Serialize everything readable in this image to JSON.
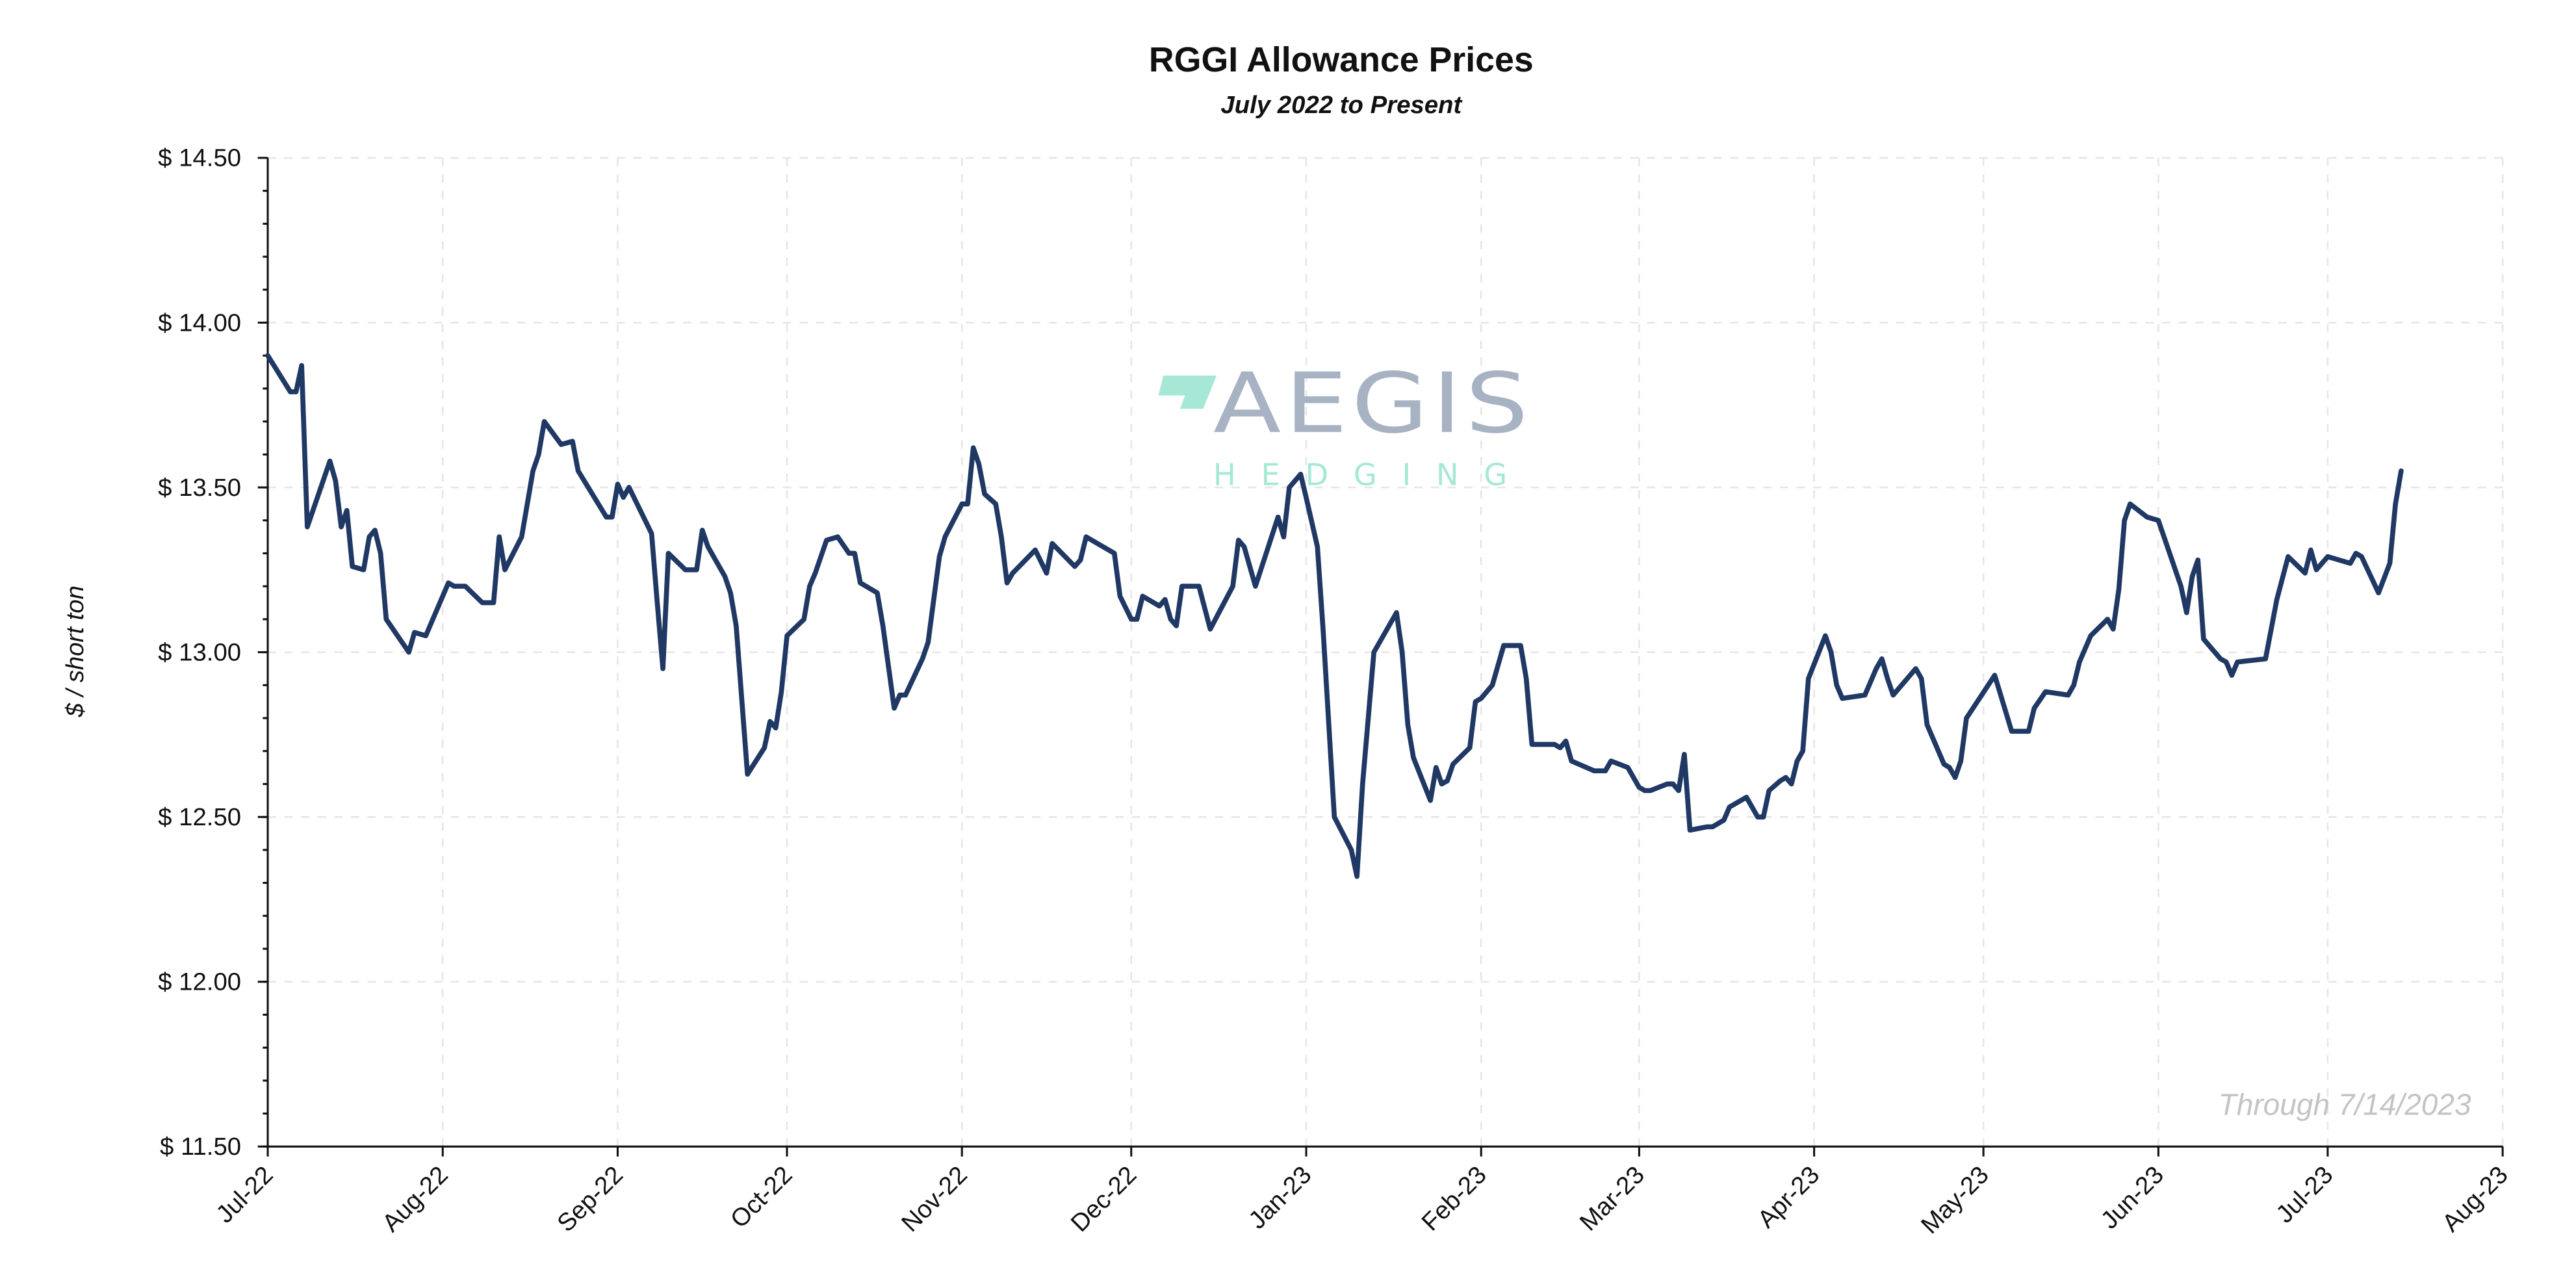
{
  "chart_data": {
    "type": "line",
    "title": "RGGI Allowance Prices",
    "subtitle": "July 2022 to Present",
    "xlabel": "",
    "ylabel": "$ / short ton",
    "annotation": "Through 7/14/2023",
    "xlim": [
      "2022-07-01",
      "2023-08-01"
    ],
    "ylim": [
      11.5,
      14.5
    ],
    "yticks": [
      11.5,
      12.0,
      12.5,
      13.0,
      13.5,
      14.0,
      14.5
    ],
    "ytick_labels": [
      "$ 11.50",
      "$ 12.00",
      "$ 12.50",
      "$ 13.00",
      "$ 13.50",
      "$ 14.00",
      "$ 14.50"
    ],
    "xticks": [
      "2022-07-01",
      "2022-08-01",
      "2022-09-01",
      "2022-10-01",
      "2022-11-01",
      "2022-12-01",
      "2023-01-01",
      "2023-02-01",
      "2023-03-01",
      "2023-04-01",
      "2023-05-01",
      "2023-06-01",
      "2023-07-01",
      "2023-08-01"
    ],
    "xtick_labels": [
      "Jul-22",
      "Aug-22",
      "Sep-22",
      "Oct-22",
      "Nov-22",
      "Dec-22",
      "Jan-23",
      "Feb-23",
      "Mar-23",
      "Apr-23",
      "May-23",
      "Jun-23",
      "Jul-23",
      "Aug-23"
    ],
    "grid": true,
    "line_color": "#203864",
    "series": [
      {
        "x": [
          "2022-07-01",
          "2022-07-05",
          "2022-07-06",
          "2022-07-07",
          "2022-07-08",
          "2022-07-12",
          "2022-07-13",
          "2022-07-14",
          "2022-07-15",
          "2022-07-16",
          "2022-07-18",
          "2022-07-19",
          "2022-07-20",
          "2022-07-21",
          "2022-07-22",
          "2022-07-26",
          "2022-07-27",
          "2022-07-29",
          "2022-08-02",
          "2022-08-03",
          "2022-08-05",
          "2022-08-08",
          "2022-08-10",
          "2022-08-11",
          "2022-08-12",
          "2022-08-15",
          "2022-08-17",
          "2022-08-18",
          "2022-08-19",
          "2022-08-22",
          "2022-08-24",
          "2022-08-25",
          "2022-08-30",
          "2022-08-31",
          "2022-09-01",
          "2022-09-02",
          "2022-09-03",
          "2022-09-07",
          "2022-09-08",
          "2022-09-09",
          "2022-09-10",
          "2022-09-13",
          "2022-09-15",
          "2022-09-16",
          "2022-09-17",
          "2022-09-20",
          "2022-09-21",
          "2022-09-22",
          "2022-09-24",
          "2022-09-27",
          "2022-09-28",
          "2022-09-29",
          "2022-09-30",
          "2022-10-01",
          "2022-10-04",
          "2022-10-05",
          "2022-10-06",
          "2022-10-08",
          "2022-10-10",
          "2022-10-12",
          "2022-10-13",
          "2022-10-14",
          "2022-10-17",
          "2022-10-18",
          "2022-10-20",
          "2022-10-21",
          "2022-10-22",
          "2022-10-25",
          "2022-10-26",
          "2022-10-28",
          "2022-10-29",
          "2022-11-01",
          "2022-11-02",
          "2022-11-03",
          "2022-11-04",
          "2022-11-05",
          "2022-11-07",
          "2022-11-08",
          "2022-11-09",
          "2022-11-10",
          "2022-11-14",
          "2022-11-16",
          "2022-11-17",
          "2022-11-21",
          "2022-11-22",
          "2022-11-23",
          "2022-11-28",
          "2022-11-29",
          "2022-12-01",
          "2022-12-02",
          "2022-12-03",
          "2022-12-06",
          "2022-12-07",
          "2022-12-08",
          "2022-12-09",
          "2022-12-10",
          "2022-12-13",
          "2022-12-15",
          "2022-12-19",
          "2022-12-20",
          "2022-12-21",
          "2022-12-23",
          "2022-12-27",
          "2022-12-28",
          "2022-12-29",
          "2022-12-31",
          "2023-01-01",
          "2023-01-03",
          "2023-01-04",
          "2023-01-06",
          "2023-01-09",
          "2023-01-10",
          "2023-01-11",
          "2023-01-13",
          "2023-01-17",
          "2023-01-18",
          "2023-01-19",
          "2023-01-20",
          "2023-01-23",
          "2023-01-24",
          "2023-01-25",
          "2023-01-26",
          "2023-01-27",
          "2023-01-30",
          "2023-01-31",
          "2023-02-01",
          "2023-02-03",
          "2023-02-05",
          "2023-02-08",
          "2023-02-09",
          "2023-02-10",
          "2023-02-14",
          "2023-02-15",
          "2023-02-16",
          "2023-02-17",
          "2023-02-21",
          "2023-02-23",
          "2023-02-24",
          "2023-02-27",
          "2023-03-01",
          "2023-03-02",
          "2023-03-03",
          "2023-03-06",
          "2023-03-07",
          "2023-03-08",
          "2023-03-09",
          "2023-03-10",
          "2023-03-13",
          "2023-03-14",
          "2023-03-16",
          "2023-03-17",
          "2023-03-20",
          "2023-03-22",
          "2023-03-23",
          "2023-03-24",
          "2023-03-26",
          "2023-03-27",
          "2023-03-28",
          "2023-03-29",
          "2023-03-30",
          "2023-03-31",
          "2023-04-03",
          "2023-04-04",
          "2023-04-05",
          "2023-04-06",
          "2023-04-10",
          "2023-04-12",
          "2023-04-13",
          "2023-04-14",
          "2023-04-15",
          "2023-04-19",
          "2023-04-20",
          "2023-04-21",
          "2023-04-24",
          "2023-04-25",
          "2023-04-26",
          "2023-04-27",
          "2023-04-28",
          "2023-05-03",
          "2023-05-06",
          "2023-05-09",
          "2023-05-10",
          "2023-05-12",
          "2023-05-16",
          "2023-05-17",
          "2023-05-18",
          "2023-05-20",
          "2023-05-23",
          "2023-05-24",
          "2023-05-25",
          "2023-05-26",
          "2023-05-27",
          "2023-05-30",
          "2023-06-01",
          "2023-06-03",
          "2023-06-05",
          "2023-06-06",
          "2023-06-07",
          "2023-06-08",
          "2023-06-09",
          "2023-06-12",
          "2023-06-13",
          "2023-06-14",
          "2023-06-15",
          "2023-06-20",
          "2023-06-22",
          "2023-06-24",
          "2023-06-27",
          "2023-06-28",
          "2023-06-29",
          "2023-07-01",
          "2023-07-05",
          "2023-07-06",
          "2023-07-07",
          "2023-07-10",
          "2023-07-12",
          "2023-07-13",
          "2023-07-14"
        ],
        "y": [
          13.9,
          13.79,
          13.79,
          13.87,
          13.38,
          13.58,
          13.52,
          13.38,
          13.43,
          13.26,
          13.25,
          13.35,
          13.37,
          13.3,
          13.1,
          13.0,
          13.06,
          13.05,
          13.21,
          13.2,
          13.2,
          13.15,
          13.15,
          13.35,
          13.25,
          13.35,
          13.55,
          13.6,
          13.7,
          13.63,
          13.64,
          13.55,
          13.41,
          13.41,
          13.51,
          13.47,
          13.5,
          13.36,
          13.15,
          12.95,
          13.3,
          13.25,
          13.25,
          13.37,
          13.32,
          13.23,
          13.18,
          13.08,
          12.63,
          12.71,
          12.79,
          12.77,
          12.88,
          13.05,
          13.1,
          13.2,
          13.24,
          13.34,
          13.35,
          13.3,
          13.3,
          13.21,
          13.18,
          13.08,
          12.83,
          12.87,
          12.87,
          12.98,
          13.03,
          13.29,
          13.35,
          13.45,
          13.45,
          13.62,
          13.57,
          13.48,
          13.45,
          13.35,
          13.21,
          13.24,
          13.31,
          13.24,
          13.33,
          13.26,
          13.28,
          13.35,
          13.3,
          13.17,
          13.1,
          13.1,
          13.17,
          13.14,
          13.16,
          13.1,
          13.08,
          13.2,
          13.2,
          13.07,
          13.2,
          13.34,
          13.32,
          13.2,
          13.41,
          13.35,
          13.5,
          13.54,
          13.47,
          13.32,
          13.07,
          12.5,
          12.4,
          12.32,
          12.6,
          13.0,
          13.12,
          13.0,
          12.78,
          12.68,
          12.55,
          12.65,
          12.6,
          12.61,
          12.66,
          12.71,
          12.85,
          12.86,
          12.9,
          13.02,
          13.02,
          12.92,
          12.72,
          12.72,
          12.71,
          12.73,
          12.67,
          12.64,
          12.64,
          12.67,
          12.65,
          12.59,
          12.58,
          12.58,
          12.6,
          12.6,
          12.58,
          12.69,
          12.46,
          12.47,
          12.47,
          12.49,
          12.53,
          12.56,
          12.5,
          12.5,
          12.58,
          12.61,
          12.62,
          12.6,
          12.67,
          12.7,
          12.92,
          13.05,
          13.0,
          12.9,
          12.86,
          12.87,
          12.95,
          12.98,
          12.92,
          12.87,
          12.95,
          12.92,
          12.78,
          12.66,
          12.65,
          12.62,
          12.67,
          12.8,
          12.93,
          12.76,
          12.76,
          12.83,
          12.88,
          12.87,
          12.9,
          12.97,
          13.05,
          13.1,
          13.07,
          13.19,
          13.4,
          13.45,
          13.41,
          13.4,
          13.3,
          13.2,
          13.12,
          13.23,
          13.28,
          13.04,
          12.98,
          12.97,
          12.93,
          12.97,
          12.98,
          13.16,
          13.29,
          13.24,
          13.31,
          13.25,
          13.29,
          13.27,
          13.3,
          13.29,
          13.18,
          13.27,
          13.45,
          13.55
        ]
      }
    ]
  },
  "logo": {
    "main": "AEGIS",
    "sub": "HEDGING",
    "main_color": "#a7b3c3",
    "accent_color": "#a6e8d5"
  }
}
